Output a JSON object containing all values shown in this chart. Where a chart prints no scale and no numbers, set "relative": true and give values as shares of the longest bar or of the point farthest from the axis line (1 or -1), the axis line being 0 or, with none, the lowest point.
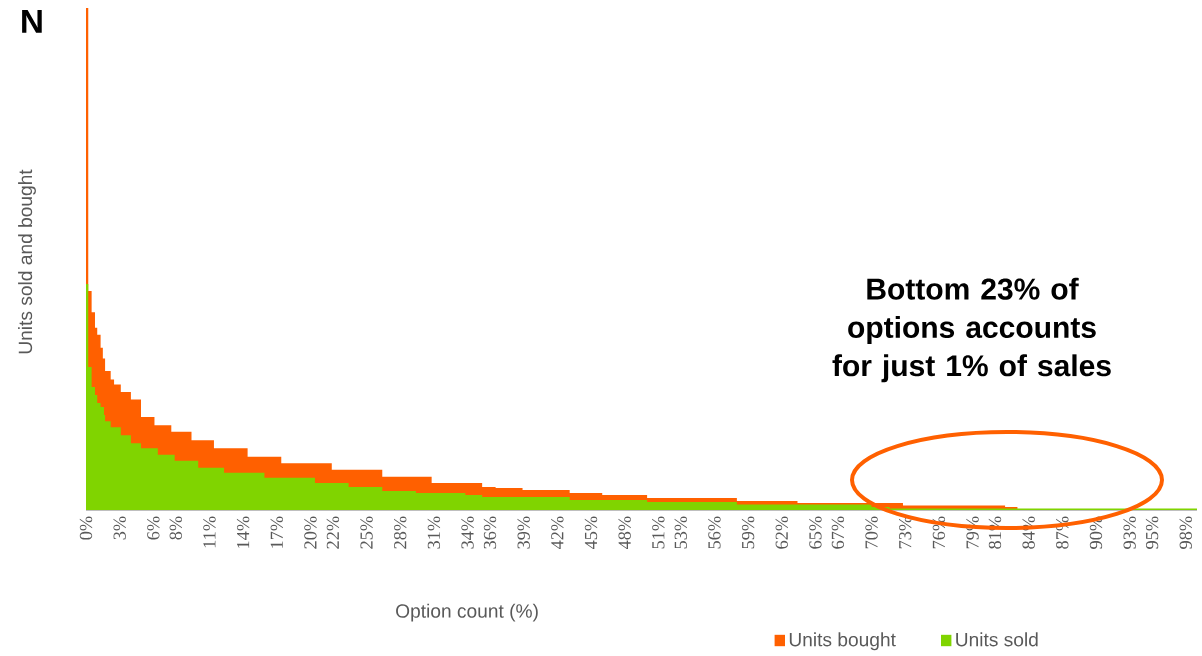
{
  "chart_data": {
    "type": "area",
    "relative": true,
    "xlabel": "Option count (%)",
    "ylabel": "Units sold and bought",
    "xlim": [
      0,
      99
    ],
    "xticks": [
      {
        "value": 0,
        "label": "0%"
      },
      {
        "value": 3,
        "label": "3%"
      },
      {
        "value": 6,
        "label": "6%"
      },
      {
        "value": 8,
        "label": "8%"
      },
      {
        "value": 11,
        "label": "11%"
      },
      {
        "value": 14,
        "label": "14%"
      },
      {
        "value": 17,
        "label": "17%"
      },
      {
        "value": 20,
        "label": "20%"
      },
      {
        "value": 22,
        "label": "22%"
      },
      {
        "value": 25,
        "label": "25%"
      },
      {
        "value": 28,
        "label": "28%"
      },
      {
        "value": 31,
        "label": "31%"
      },
      {
        "value": 34,
        "label": "34%"
      },
      {
        "value": 36,
        "label": "36%"
      },
      {
        "value": 39,
        "label": "39%"
      },
      {
        "value": 42,
        "label": "42%"
      },
      {
        "value": 45,
        "label": "45%"
      },
      {
        "value": 48,
        "label": "48%"
      },
      {
        "value": 51,
        "label": "51%"
      },
      {
        "value": 53,
        "label": "53%"
      },
      {
        "value": 56,
        "label": "56%"
      },
      {
        "value": 59,
        "label": "59%"
      },
      {
        "value": 62,
        "label": "62%"
      },
      {
        "value": 65,
        "label": "65%"
      },
      {
        "value": 67,
        "label": "67%"
      },
      {
        "value": 70,
        "label": "70%"
      },
      {
        "value": 73,
        "label": "73%"
      },
      {
        "value": 76,
        "label": "76%"
      },
      {
        "value": 79,
        "label": "79%"
      },
      {
        "value": 81,
        "label": "81%"
      },
      {
        "value": 84,
        "label": "84%"
      },
      {
        "value": 87,
        "label": "87%"
      },
      {
        "value": 90,
        "label": "90%"
      },
      {
        "value": 93,
        "label": "93%"
      },
      {
        "value": 95,
        "label": "95%"
      },
      {
        "value": 98,
        "label": "98%"
      }
    ],
    "legend": "bottom right",
    "series": [
      {
        "name": "Units bought",
        "color": "#ff6000",
        "x": [
          0,
          0.2,
          0.5,
          0.8,
          1.0,
          1.3,
          1.5,
          1.7,
          2.2,
          2.5,
          3.1,
          4.0,
          4.9,
          6.1,
          7.6,
          9.4,
          11.4,
          14.4,
          17.4,
          21.9,
          26.4,
          30.8,
          35.3,
          36.5,
          38.9,
          43.1,
          46,
          50,
          58,
          63.4,
          72.8,
          81.9,
          83,
          99
        ],
        "values": [
          1.0,
          0.436,
          0.394,
          0.363,
          0.349,
          0.323,
          0.302,
          0.277,
          0.26,
          0.25,
          0.235,
          0.22,
          0.185,
          0.169,
          0.156,
          0.139,
          0.123,
          0.106,
          0.093,
          0.08,
          0.066,
          0.054,
          0.046,
          0.044,
          0.04,
          0.034,
          0.03,
          0.024,
          0.018,
          0.014,
          0.009,
          0.006,
          0.002,
          0.002
        ]
      },
      {
        "name": "Units sold",
        "color": "#80d400",
        "x": [
          0,
          0.2,
          0.5,
          0.8,
          1.0,
          1.3,
          1.6,
          1.7,
          2.2,
          3.1,
          4.0,
          4.9,
          6.4,
          7.9,
          10.0,
          12.3,
          15.9,
          20.4,
          23.4,
          26.4,
          29.4,
          33.8,
          35.3,
          37.4,
          43.1,
          50,
          58,
          70,
          71.6,
          99
        ],
        "values": [
          0.45,
          0.285,
          0.245,
          0.229,
          0.213,
          0.205,
          0.189,
          0.177,
          0.165,
          0.149,
          0.133,
          0.123,
          0.11,
          0.098,
          0.084,
          0.074,
          0.064,
          0.054,
          0.046,
          0.038,
          0.034,
          0.03,
          0.026,
          0.026,
          0.02,
          0.016,
          0.011,
          0.006,
          0.003,
          0.002
        ]
      }
    ],
    "annotations": [
      "N",
      "Bottom 23% of options accounts for just 1% of sales"
    ]
  }
}
